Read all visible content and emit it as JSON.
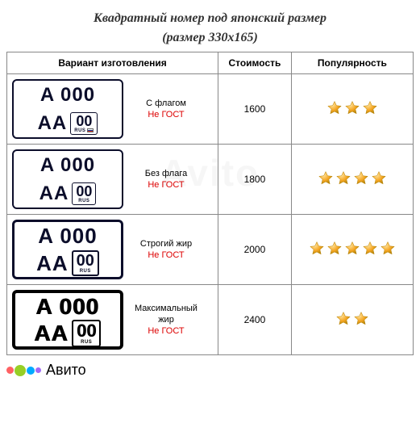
{
  "title_line1": "Квадратный номер под японский размер",
  "title_line2": "(размер 330x165)",
  "headers": {
    "variant": "Вариант изготовления",
    "cost": "Стоимость",
    "popularity": "Популярность"
  },
  "plate": {
    "top": "A 000",
    "series": "AA",
    "region": "00",
    "rus": "RUS"
  },
  "rows": [
    {
      "name_line1": "С флагом",
      "name_line2": "",
      "gost": "Не ГОСТ",
      "cost": "1600",
      "stars": 3,
      "show_flag": true,
      "style": 1
    },
    {
      "name_line1": "Без флага",
      "name_line2": "",
      "gost": "Не ГОСТ",
      "cost": "1800",
      "stars": 4,
      "show_flag": false,
      "style": 2
    },
    {
      "name_line1": "Строгий жир",
      "name_line2": "",
      "gost": "Не ГОСТ",
      "cost": "2000",
      "stars": 5,
      "show_flag": false,
      "style": 3
    },
    {
      "name_line1": "Максимальный",
      "name_line2": "жир",
      "gost": "Не ГОСТ",
      "cost": "2400",
      "stars": 2,
      "show_flag": false,
      "style": 4
    }
  ],
  "star_colors": {
    "fill": "#f5a623",
    "stroke": "#b8860b",
    "highlight": "#ffe39a"
  },
  "watermark": "Avito",
  "avito": {
    "text": "Авито",
    "dots": [
      {
        "color": "#ff6163",
        "size": 9
      },
      {
        "color": "#97cf26",
        "size": 14
      },
      {
        "color": "#0af",
        "size": 10
      },
      {
        "color": "#a169f7",
        "size": 7
      }
    ]
  }
}
